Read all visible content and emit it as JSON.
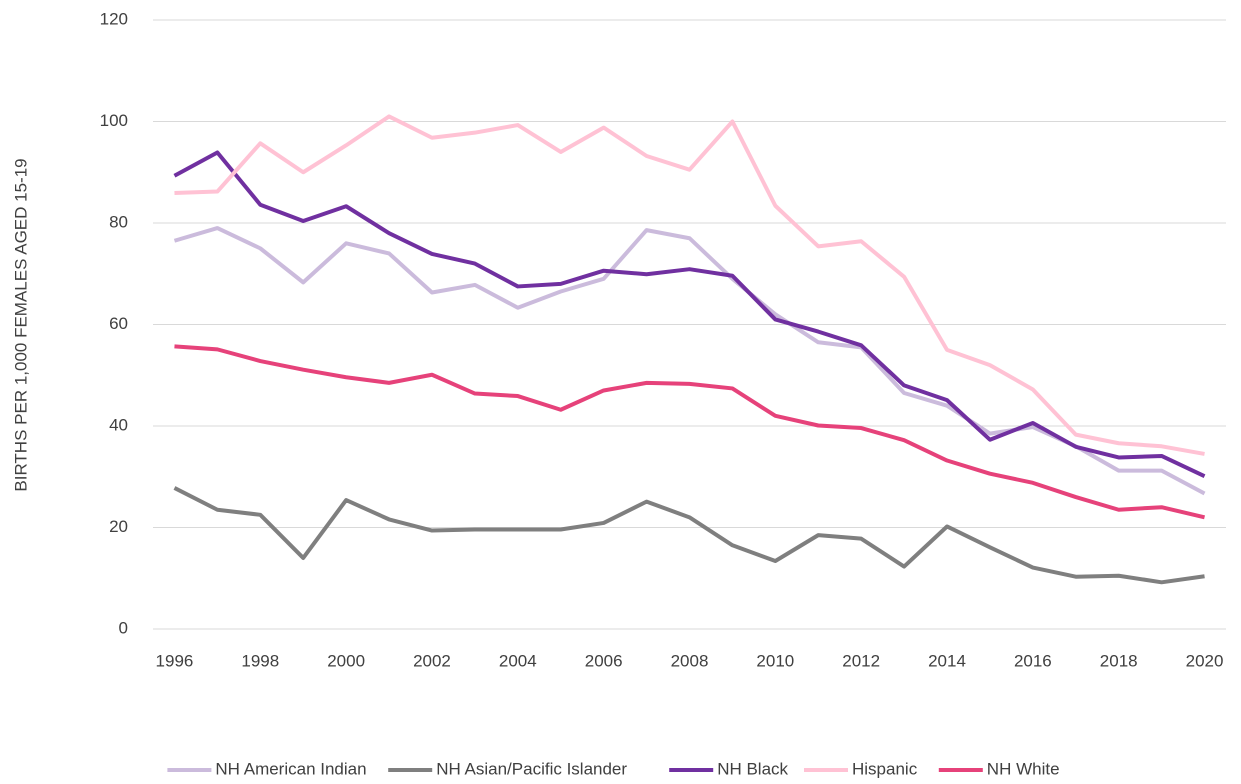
{
  "chart_data": {
    "type": "line",
    "y_label": "BIRTHS PER 1,000 FEMALES AGED 15-19",
    "x": [
      1996,
      1997,
      1998,
      1999,
      2000,
      2001,
      2002,
      2003,
      2004,
      2005,
      2006,
      2007,
      2008,
      2009,
      2010,
      2011,
      2012,
      2013,
      2014,
      2015,
      2016,
      2017,
      2018,
      2019,
      2020
    ],
    "xlim": [
      1995.5,
      2020.5
    ],
    "xticks": [
      1996,
      1998,
      2000,
      2002,
      2004,
      2006,
      2008,
      2010,
      2012,
      2014,
      2016,
      2018,
      2020
    ],
    "ylim": [
      0,
      120
    ],
    "yticks": [
      0,
      20,
      40,
      60,
      80,
      100,
      120
    ],
    "grid": true,
    "legend": "bottom",
    "series": [
      {
        "name": "NH American Indian",
        "color": "#cbbbdc",
        "values": [
          76.5,
          79,
          75,
          68.3,
          76,
          74,
          66.3,
          67.8,
          63.3,
          66.5,
          69,
          78.6,
          77,
          69,
          62,
          56.5,
          55.5,
          46.5,
          44,
          38.5,
          39.8,
          36,
          31.2,
          31.2,
          26.7
        ]
      },
      {
        "name": "NH Asian/Pacific Islander",
        "color": "#7f7f7f",
        "values": [
          27.8,
          23.5,
          22.5,
          14,
          25.4,
          21.6,
          19.4,
          19.6,
          19.6,
          19.6,
          20.9,
          25.1,
          22,
          16.5,
          13.4,
          18.5,
          17.8,
          12.3,
          20.2,
          16.1,
          12.1,
          10.3,
          10.5,
          9.2,
          10.4
        ]
      },
      {
        "name": "NH Black",
        "color": "#7030a0",
        "values": [
          89.3,
          93.9,
          83.6,
          80.4,
          83.3,
          78,
          73.9,
          72,
          67.5,
          68,
          70.6,
          69.9,
          70.9,
          69.6,
          61,
          58.6,
          55.9,
          48,
          45.1,
          37.3,
          40.6,
          35.9,
          33.8,
          34.1,
          30.1
        ]
      },
      {
        "name": "Hispanic",
        "color": "#ffc2d4",
        "values": [
          85.9,
          86.2,
          95.7,
          90,
          95.3,
          101,
          96.8,
          97.8,
          99.3,
          94,
          98.8,
          93.2,
          90.5,
          100,
          83.4,
          75.4,
          76.4,
          69.4,
          55,
          52,
          47.2,
          38.3,
          36.6,
          36,
          34.5
        ]
      },
      {
        "name": "NH White",
        "color": "#e6427a",
        "values": [
          55.7,
          55.1,
          52.8,
          51.1,
          49.6,
          48.5,
          50.1,
          46.4,
          45.9,
          43.2,
          47,
          48.5,
          48.3,
          47.4,
          42,
          40.1,
          39.6,
          37.2,
          33.2,
          30.6,
          28.8,
          26,
          23.5,
          24,
          22
        ]
      }
    ]
  }
}
